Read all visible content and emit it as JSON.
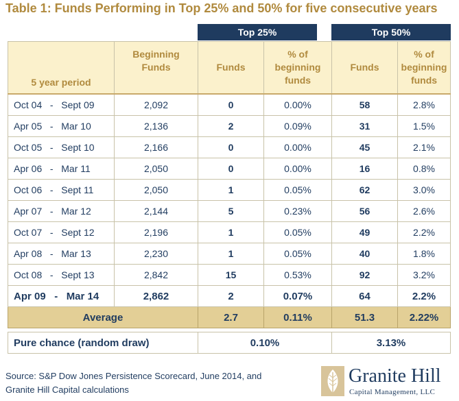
{
  "title": "Table 1: Funds Performing in Top 25% and 50% for five consecutive years",
  "groups": {
    "top25": "Top 25%",
    "top50": "Top 50%"
  },
  "headers": {
    "period": "5 year period",
    "beginning_line1": "Beginning",
    "beginning_line2": "Funds",
    "funds": "Funds",
    "pct_line1": "% of",
    "pct_line2": "beginning",
    "pct_line3": "funds"
  },
  "rows": [
    {
      "start": "Oct 04",
      "end": "Sept 09",
      "beginning": "2,092",
      "t25_funds": "0",
      "t25_pct": "0.00%",
      "t50_funds": "58",
      "t50_pct": "2.8%"
    },
    {
      "start": "Apr 05",
      "end": "Mar 10",
      "beginning": "2,136",
      "t25_funds": "2",
      "t25_pct": "0.09%",
      "t50_funds": "31",
      "t50_pct": "1.5%"
    },
    {
      "start": "Oct 05",
      "end": "Sept 10",
      "beginning": "2,166",
      "t25_funds": "0",
      "t25_pct": "0.00%",
      "t50_funds": "45",
      "t50_pct": "2.1%"
    },
    {
      "start": "Apr 06",
      "end": "Mar 11",
      "beginning": "2,050",
      "t25_funds": "0",
      "t25_pct": "0.00%",
      "t50_funds": "16",
      "t50_pct": "0.8%"
    },
    {
      "start": "Oct 06",
      "end": "Sept 11",
      "beginning": "2,050",
      "t25_funds": "1",
      "t25_pct": "0.05%",
      "t50_funds": "62",
      "t50_pct": "3.0%"
    },
    {
      "start": "Apr 07",
      "end": "Mar 12",
      "beginning": "2,144",
      "t25_funds": "5",
      "t25_pct": "0.23%",
      "t50_funds": "56",
      "t50_pct": "2.6%"
    },
    {
      "start": "Oct 07",
      "end": "Sept 12",
      "beginning": "2,196",
      "t25_funds": "1",
      "t25_pct": "0.05%",
      "t50_funds": "49",
      "t50_pct": "2.2%"
    },
    {
      "start": "Apr 08",
      "end": "Mar 13",
      "beginning": "2,230",
      "t25_funds": "1",
      "t25_pct": "0.05%",
      "t50_funds": "40",
      "t50_pct": "1.8%"
    },
    {
      "start": "Oct 08",
      "end": "Sept 13",
      "beginning": "2,842",
      "t25_funds": "15",
      "t25_pct": "0.53%",
      "t50_funds": "92",
      "t50_pct": "3.2%"
    },
    {
      "start": "Apr 09",
      "end": "Mar 14",
      "beginning": "2,862",
      "t25_funds": "2",
      "t25_pct": "0.07%",
      "t50_funds": "64",
      "t50_pct": "2.2%"
    }
  ],
  "average": {
    "label": "Average",
    "t25_funds": "2.7",
    "t25_pct": "0.11%",
    "t50_funds": "51.3",
    "t50_pct": "2.22%"
  },
  "chance": {
    "label": "Pure chance (random draw)",
    "t25_pct": "0.10%",
    "t50_pct": "3.13%"
  },
  "source": {
    "line1": "Source: S&P Dow Jones Persistence Scorecard, June 2014, and",
    "line2": "Granite Hill Capital calculations"
  },
  "logo": {
    "name": "Granite Hill",
    "sub": "Capital Management, LLC"
  },
  "colors": {
    "navy": "#1f3b5f",
    "gold": "#b08a3e",
    "header_bg": "#fbf1cc",
    "average_bg": "#e3cf96"
  }
}
